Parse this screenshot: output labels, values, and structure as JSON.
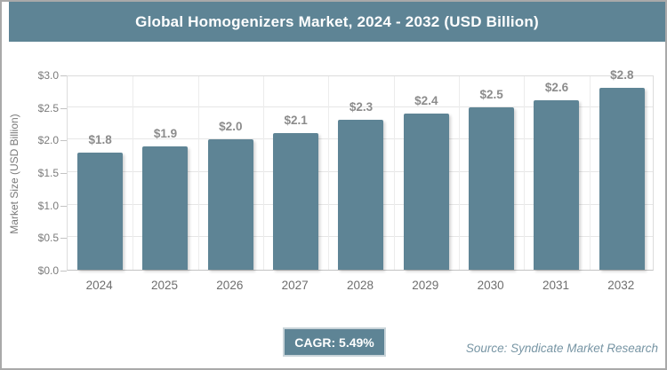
{
  "header": {
    "title": "Global Homogenizers Market, 2024 - 2032 (USD Billion)"
  },
  "chart_data": {
    "type": "bar",
    "title": "Global Homogenizers Market, 2024 - 2032 (USD Billion)",
    "categories": [
      "2024",
      "2025",
      "2026",
      "2027",
      "2028",
      "2029",
      "2030",
      "2031",
      "2032"
    ],
    "values": [
      1.8,
      1.9,
      2.0,
      2.1,
      2.3,
      2.4,
      2.5,
      2.6,
      2.8
    ],
    "bar_labels": [
      "$1.8",
      "$1.9",
      "$2.0",
      "$2.1",
      "$2.3",
      "$2.4",
      "$2.5",
      "$2.6",
      "$2.8"
    ],
    "xlabel": "",
    "ylabel": "Market Size (USD Billion)",
    "ylim": [
      0,
      3.0
    ],
    "ytick_step": 0.5,
    "ytick_labels": [
      "$0.0",
      "$0.5",
      "$1.0",
      "$1.5",
      "$2.0",
      "$2.5",
      "$3.0"
    ],
    "grid": true,
    "legend": "none",
    "bar_color": "#5e8495"
  },
  "footer": {
    "cagr_label": "CAGR: 5.49%",
    "source": "Source: Syndicate Market Research"
  },
  "colors": {
    "accent": "#5e8495",
    "frame_border": "#a9a9a9",
    "grid_line": "#e6e6e6",
    "axis_line": "#c3c3c3",
    "tick_text": "#7b7b7b",
    "bar_label_text": "#8c8c8c",
    "source_text": "#7795a4",
    "badge_border": "#c9d4d9",
    "title_text": "#ffffff"
  }
}
